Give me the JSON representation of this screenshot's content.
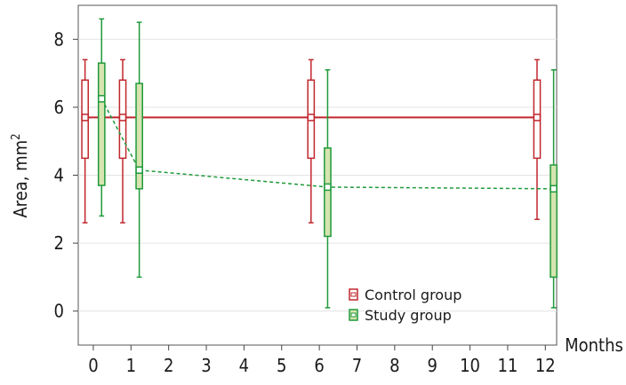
{
  "chart_data": {
    "type": "box",
    "xlabel": "Months",
    "ylabel": "Area, mm",
    "ylabel_superscript": "2",
    "x_ticks": [
      0,
      1,
      2,
      3,
      4,
      5,
      6,
      7,
      8,
      9,
      10,
      11,
      12
    ],
    "y_ticks": [
      0,
      2,
      4,
      6,
      8
    ],
    "xlim": [
      -0.4,
      12.3
    ],
    "ylim": [
      -1,
      9
    ],
    "grid": "horizontal",
    "legend_position": "bottom-center",
    "series": [
      {
        "name": "Control group",
        "color": "#c0272d",
        "fill": "#ffffff",
        "line_style": "solid",
        "points": [
          {
            "month": 0,
            "mean": 5.7,
            "q1": 4.5,
            "q3": 6.8,
            "min": 2.6,
            "max": 7.4
          },
          {
            "month": 1,
            "mean": 5.7,
            "q1": 4.5,
            "q3": 6.8,
            "min": 2.6,
            "max": 7.4
          },
          {
            "month": 6,
            "mean": 5.7,
            "q1": 4.5,
            "q3": 6.8,
            "min": 2.6,
            "max": 7.4
          },
          {
            "month": 12,
            "mean": 5.7,
            "q1": 4.5,
            "q3": 6.8,
            "min": 2.7,
            "max": 7.4
          }
        ]
      },
      {
        "name": "Study group",
        "color": "#1f9a3a",
        "fill": "#d6e4b0",
        "line_style": "dashed",
        "points": [
          {
            "month": 0,
            "mean": 6.25,
            "q1": 3.7,
            "q3": 7.3,
            "min": 2.8,
            "max": 8.6
          },
          {
            "month": 1,
            "mean": 4.15,
            "q1": 3.6,
            "q3": 6.7,
            "min": 1.0,
            "max": 8.5
          },
          {
            "month": 6,
            "mean": 3.65,
            "q1": 2.2,
            "q3": 4.8,
            "min": 0.1,
            "max": 7.1
          },
          {
            "month": 12,
            "mean": 3.6,
            "q1": 1.0,
            "q3": 4.3,
            "min": 0.1,
            "max": 7.1
          }
        ]
      }
    ]
  }
}
